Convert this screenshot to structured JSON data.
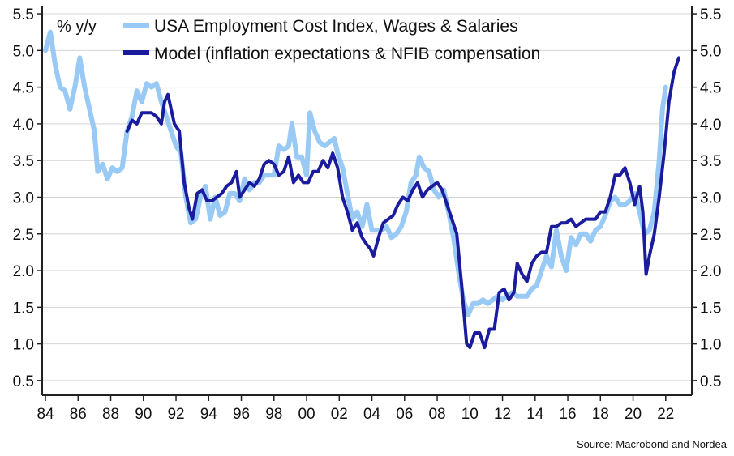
{
  "chart_data": {
    "type": "line",
    "unit_label": "% y/y",
    "source": "Source: Macrobond and Nordea",
    "ylim": [
      0.3,
      5.6
    ],
    "yticks": [
      "0.5",
      "1.0",
      "1.5",
      "2.0",
      "2.5",
      "3.0",
      "3.5",
      "4.0",
      "4.5",
      "5.0",
      "5.5"
    ],
    "ytick_values": [
      0.5,
      1.0,
      1.5,
      2.0,
      2.5,
      3.0,
      3.5,
      4.0,
      4.5,
      5.0,
      5.5
    ],
    "xlim": [
      1983.8,
      2023.6
    ],
    "xticks": [
      "84",
      "86",
      "88",
      "90",
      "92",
      "94",
      "96",
      "98",
      "00",
      "02",
      "04",
      "06",
      "08",
      "10",
      "12",
      "14",
      "16",
      "18",
      "20",
      "22"
    ],
    "xtick_values": [
      1984,
      1986,
      1988,
      1990,
      1992,
      1994,
      1996,
      1998,
      2000,
      2002,
      2004,
      2006,
      2008,
      2010,
      2012,
      2014,
      2016,
      2018,
      2020,
      2022
    ],
    "grid": "horizontal",
    "legend_position": "top-center",
    "series": [
      {
        "name": "USA Employment Cost Index, Wages & Salaries",
        "color": "#99C9F5",
        "points": [
          [
            1984.0,
            5.0
          ],
          [
            1984.3,
            5.25
          ],
          [
            1984.6,
            4.8
          ],
          [
            1984.9,
            4.5
          ],
          [
            1985.2,
            4.45
          ],
          [
            1985.5,
            4.2
          ],
          [
            1985.8,
            4.5
          ],
          [
            1986.1,
            4.9
          ],
          [
            1986.4,
            4.5
          ],
          [
            1986.7,
            4.2
          ],
          [
            1987.0,
            3.9
          ],
          [
            1987.2,
            3.35
          ],
          [
            1987.5,
            3.45
          ],
          [
            1987.8,
            3.25
          ],
          [
            1988.1,
            3.4
          ],
          [
            1988.4,
            3.35
          ],
          [
            1988.7,
            3.4
          ],
          [
            1989.0,
            3.9
          ],
          [
            1989.3,
            4.1
          ],
          [
            1989.6,
            4.45
          ],
          [
            1989.9,
            4.3
          ],
          [
            1990.2,
            4.55
          ],
          [
            1990.5,
            4.5
          ],
          [
            1990.8,
            4.55
          ],
          [
            1991.1,
            4.3
          ],
          [
            1991.4,
            4.1
          ],
          [
            1991.7,
            3.9
          ],
          [
            1992.0,
            3.7
          ],
          [
            1992.3,
            3.6
          ],
          [
            1992.6,
            3.0
          ],
          [
            1992.9,
            2.65
          ],
          [
            1993.2,
            2.7
          ],
          [
            1993.5,
            3.0
          ],
          [
            1993.8,
            3.15
          ],
          [
            1994.1,
            2.7
          ],
          [
            1994.4,
            3.0
          ],
          [
            1994.7,
            2.75
          ],
          [
            1995.0,
            2.8
          ],
          [
            1995.3,
            3.05
          ],
          [
            1995.6,
            3.05
          ],
          [
            1995.9,
            2.95
          ],
          [
            1996.2,
            3.25
          ],
          [
            1996.5,
            3.1
          ],
          [
            1996.8,
            3.2
          ],
          [
            1997.1,
            3.2
          ],
          [
            1997.4,
            3.3
          ],
          [
            1997.7,
            3.3
          ],
          [
            1998.0,
            3.3
          ],
          [
            1998.3,
            3.7
          ],
          [
            1998.6,
            3.65
          ],
          [
            1998.9,
            3.7
          ],
          [
            1999.1,
            4.0
          ],
          [
            1999.4,
            3.55
          ],
          [
            1999.7,
            3.55
          ],
          [
            2000.0,
            3.3
          ],
          [
            2000.2,
            4.15
          ],
          [
            2000.5,
            3.9
          ],
          [
            2000.8,
            3.75
          ],
          [
            2001.1,
            3.7
          ],
          [
            2001.4,
            3.75
          ],
          [
            2001.7,
            3.8
          ],
          [
            2001.9,
            3.6
          ],
          [
            2002.2,
            3.4
          ],
          [
            2002.5,
            3.05
          ],
          [
            2002.8,
            2.7
          ],
          [
            2003.1,
            2.8
          ],
          [
            2003.4,
            2.6
          ],
          [
            2003.7,
            2.9
          ],
          [
            2004.0,
            2.55
          ],
          [
            2004.3,
            2.55
          ],
          [
            2004.6,
            2.55
          ],
          [
            2004.9,
            2.6
          ],
          [
            2005.2,
            2.45
          ],
          [
            2005.5,
            2.5
          ],
          [
            2005.8,
            2.6
          ],
          [
            2006.1,
            2.8
          ],
          [
            2006.4,
            3.2
          ],
          [
            2006.7,
            3.3
          ],
          [
            2006.9,
            3.55
          ],
          [
            2007.2,
            3.4
          ],
          [
            2007.5,
            3.35
          ],
          [
            2007.8,
            3.1
          ],
          [
            2008.1,
            3.0
          ],
          [
            2008.4,
            3.1
          ],
          [
            2008.7,
            2.8
          ],
          [
            2009.0,
            2.45
          ],
          [
            2009.3,
            2.0
          ],
          [
            2009.6,
            1.6
          ],
          [
            2009.9,
            1.4
          ],
          [
            2010.2,
            1.55
          ],
          [
            2010.5,
            1.55
          ],
          [
            2010.8,
            1.6
          ],
          [
            2011.1,
            1.55
          ],
          [
            2011.4,
            1.6
          ],
          [
            2011.7,
            1.65
          ],
          [
            2012.0,
            1.6
          ],
          [
            2012.3,
            1.65
          ],
          [
            2012.6,
            1.7
          ],
          [
            2012.9,
            1.65
          ],
          [
            2013.2,
            1.65
          ],
          [
            2013.5,
            1.65
          ],
          [
            2013.8,
            1.75
          ],
          [
            2014.1,
            1.8
          ],
          [
            2014.4,
            2.0
          ],
          [
            2014.7,
            2.2
          ],
          [
            2015.0,
            2.05
          ],
          [
            2015.3,
            2.55
          ],
          [
            2015.6,
            2.2
          ],
          [
            2015.9,
            2.0
          ],
          [
            2016.2,
            2.45
          ],
          [
            2016.5,
            2.35
          ],
          [
            2016.8,
            2.5
          ],
          [
            2017.1,
            2.5
          ],
          [
            2017.4,
            2.4
          ],
          [
            2017.7,
            2.55
          ],
          [
            2018.0,
            2.6
          ],
          [
            2018.3,
            2.75
          ],
          [
            2018.6,
            2.95
          ],
          [
            2018.9,
            3.0
          ],
          [
            2019.2,
            2.9
          ],
          [
            2019.5,
            2.9
          ],
          [
            2019.8,
            2.95
          ],
          [
            2020.1,
            3.05
          ],
          [
            2020.4,
            2.8
          ],
          [
            2020.7,
            2.5
          ],
          [
            2021.0,
            2.55
          ],
          [
            2021.3,
            2.8
          ],
          [
            2021.6,
            3.5
          ],
          [
            2021.8,
            4.2
          ],
          [
            2022.0,
            4.5
          ]
        ]
      },
      {
        "name": "Model (inflation expectations & NFIB compensation",
        "color": "#1B1B9E",
        "points": [
          [
            1989.0,
            3.9
          ],
          [
            1989.3,
            4.05
          ],
          [
            1989.6,
            4.0
          ],
          [
            1989.9,
            4.15
          ],
          [
            1990.2,
            4.15
          ],
          [
            1990.5,
            4.15
          ],
          [
            1990.8,
            4.1
          ],
          [
            1991.1,
            4.0
          ],
          [
            1991.3,
            4.3
          ],
          [
            1991.5,
            4.4
          ],
          [
            1991.7,
            4.2
          ],
          [
            1991.9,
            4.0
          ],
          [
            1992.2,
            3.9
          ],
          [
            1992.5,
            3.2
          ],
          [
            1992.8,
            2.85
          ],
          [
            1993.0,
            2.7
          ],
          [
            1993.3,
            3.05
          ],
          [
            1993.6,
            3.1
          ],
          [
            1993.9,
            2.95
          ],
          [
            1994.2,
            2.95
          ],
          [
            1994.5,
            3.0
          ],
          [
            1994.8,
            3.05
          ],
          [
            1995.1,
            3.15
          ],
          [
            1995.4,
            3.2
          ],
          [
            1995.7,
            3.35
          ],
          [
            1995.9,
            3.0
          ],
          [
            1996.2,
            3.1
          ],
          [
            1996.5,
            3.2
          ],
          [
            1996.8,
            3.15
          ],
          [
            1997.1,
            3.25
          ],
          [
            1997.4,
            3.45
          ],
          [
            1997.7,
            3.5
          ],
          [
            1998.0,
            3.45
          ],
          [
            1998.3,
            3.3
          ],
          [
            1998.6,
            3.35
          ],
          [
            1998.9,
            3.55
          ],
          [
            1999.2,
            3.2
          ],
          [
            1999.5,
            3.3
          ],
          [
            1999.8,
            3.2
          ],
          [
            2000.1,
            3.2
          ],
          [
            2000.4,
            3.35
          ],
          [
            2000.7,
            3.35
          ],
          [
            2001.0,
            3.5
          ],
          [
            2001.3,
            3.4
          ],
          [
            2001.6,
            3.6
          ],
          [
            2001.9,
            3.4
          ],
          [
            2002.2,
            3.0
          ],
          [
            2002.5,
            2.8
          ],
          [
            2002.8,
            2.55
          ],
          [
            2003.1,
            2.65
          ],
          [
            2003.4,
            2.45
          ],
          [
            2003.7,
            2.35
          ],
          [
            2003.9,
            2.3
          ],
          [
            2004.1,
            2.2
          ],
          [
            2004.4,
            2.45
          ],
          [
            2004.7,
            2.65
          ],
          [
            2005.0,
            2.7
          ],
          [
            2005.3,
            2.75
          ],
          [
            2005.6,
            2.9
          ],
          [
            2005.9,
            3.0
          ],
          [
            2006.2,
            2.95
          ],
          [
            2006.5,
            3.1
          ],
          [
            2006.8,
            3.2
          ],
          [
            2007.1,
            3.0
          ],
          [
            2007.4,
            3.1
          ],
          [
            2007.7,
            3.15
          ],
          [
            2008.0,
            3.2
          ],
          [
            2008.3,
            3.1
          ],
          [
            2008.6,
            2.9
          ],
          [
            2008.9,
            2.7
          ],
          [
            2009.2,
            2.5
          ],
          [
            2009.5,
            1.8
          ],
          [
            2009.8,
            1.0
          ],
          [
            2010.0,
            0.95
          ],
          [
            2010.3,
            1.15
          ],
          [
            2010.6,
            1.15
          ],
          [
            2010.9,
            0.95
          ],
          [
            2011.2,
            1.2
          ],
          [
            2011.5,
            1.2
          ],
          [
            2011.8,
            1.7
          ],
          [
            2012.1,
            1.75
          ],
          [
            2012.4,
            1.6
          ],
          [
            2012.7,
            1.7
          ],
          [
            2012.9,
            2.1
          ],
          [
            2013.2,
            1.95
          ],
          [
            2013.5,
            1.85
          ],
          [
            2013.8,
            2.1
          ],
          [
            2014.1,
            2.2
          ],
          [
            2014.4,
            2.25
          ],
          [
            2014.7,
            2.25
          ],
          [
            2015.0,
            2.6
          ],
          [
            2015.3,
            2.6
          ],
          [
            2015.6,
            2.65
          ],
          [
            2015.9,
            2.65
          ],
          [
            2016.2,
            2.7
          ],
          [
            2016.5,
            2.6
          ],
          [
            2016.8,
            2.65
          ],
          [
            2017.1,
            2.7
          ],
          [
            2017.4,
            2.7
          ],
          [
            2017.7,
            2.7
          ],
          [
            2018.0,
            2.8
          ],
          [
            2018.3,
            2.8
          ],
          [
            2018.6,
            3.0
          ],
          [
            2018.9,
            3.3
          ],
          [
            2019.2,
            3.3
          ],
          [
            2019.5,
            3.4
          ],
          [
            2019.8,
            3.2
          ],
          [
            2020.1,
            2.9
          ],
          [
            2020.4,
            3.15
          ],
          [
            2020.6,
            2.8
          ],
          [
            2020.8,
            1.95
          ],
          [
            2021.0,
            2.2
          ],
          [
            2021.3,
            2.5
          ],
          [
            2021.6,
            3.0
          ],
          [
            2021.9,
            3.6
          ],
          [
            2022.2,
            4.3
          ],
          [
            2022.5,
            4.7
          ],
          [
            2022.8,
            4.9
          ]
        ]
      }
    ]
  }
}
